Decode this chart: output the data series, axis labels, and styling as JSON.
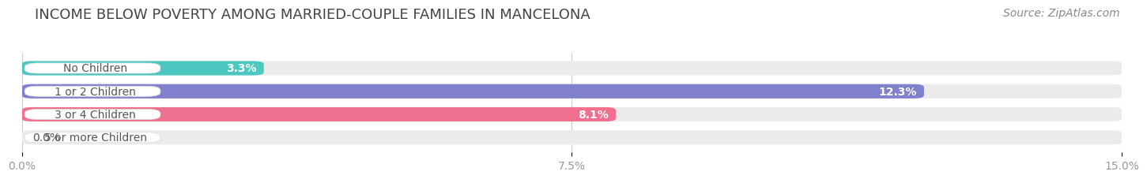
{
  "title": "INCOME BELOW POVERTY AMONG MARRIED-COUPLE FAMILIES IN MANCELONA",
  "source": "Source: ZipAtlas.com",
  "categories": [
    "No Children",
    "1 or 2 Children",
    "3 or 4 Children",
    "5 or more Children"
  ],
  "values": [
    3.3,
    12.3,
    8.1,
    0.0
  ],
  "value_labels": [
    "3.3%",
    "12.3%",
    "8.1%",
    "0.0%"
  ],
  "bar_colors": [
    "#4dc8c0",
    "#8080cc",
    "#f07090",
    "#f8c899"
  ],
  "xlim": [
    0,
    15.0
  ],
  "xticks": [
    0.0,
    7.5,
    15.0
  ],
  "xtick_labels": [
    "0.0%",
    "7.5%",
    "15.0%"
  ],
  "title_fontsize": 13,
  "source_fontsize": 10,
  "label_fontsize": 10,
  "value_fontsize": 10,
  "bar_height": 0.62,
  "background_color": "#ffffff",
  "bar_bg_color": "#ebebeb",
  "grid_color": "#cccccc",
  "label_text_color": "#555555",
  "tick_color": "#999999"
}
